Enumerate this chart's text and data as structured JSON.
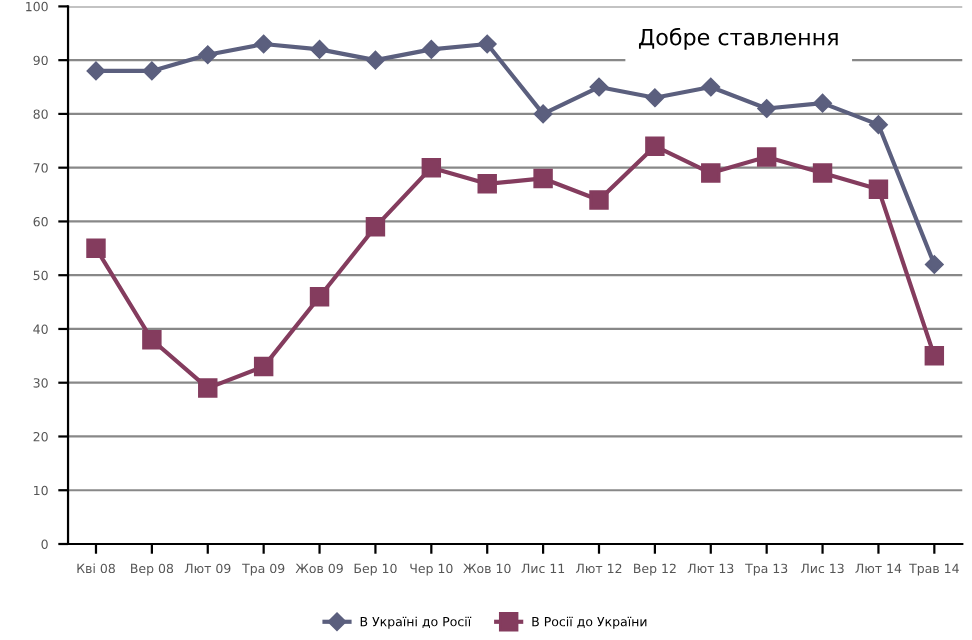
{
  "chart_data": {
    "type": "line",
    "title": "Добре ставлення",
    "categories": [
      "Кві 08",
      "Вер 08",
      "Лют 09",
      "Тра 09",
      "Жов 09",
      "Бер 10",
      "Чер 10",
      "Жов 10",
      "Лис 11",
      "Лют 12",
      "Вер 12",
      "Лют 13",
      "Тра 13",
      "Лис 13",
      "Лют 14",
      "Трав 14"
    ],
    "series": [
      {
        "name": "В Україні до Росії",
        "color": "#5b5f7e",
        "marker": "diamond",
        "values": [
          88,
          88,
          91,
          93,
          92,
          90,
          92,
          93,
          80,
          85,
          83,
          85,
          81,
          82,
          78,
          52
        ]
      },
      {
        "name": "В Росії до України",
        "color": "#843c5e",
        "marker": "square",
        "values": [
          55,
          38,
          29,
          33,
          46,
          59,
          70,
          67,
          68,
          64,
          74,
          69,
          72,
          69,
          66,
          35
        ]
      }
    ],
    "ylim": [
      0,
      100
    ],
    "yticks": [
      0,
      10,
      20,
      30,
      40,
      50,
      60,
      70,
      80,
      90,
      100
    ],
    "grid": "y",
    "legend": "bottom"
  }
}
